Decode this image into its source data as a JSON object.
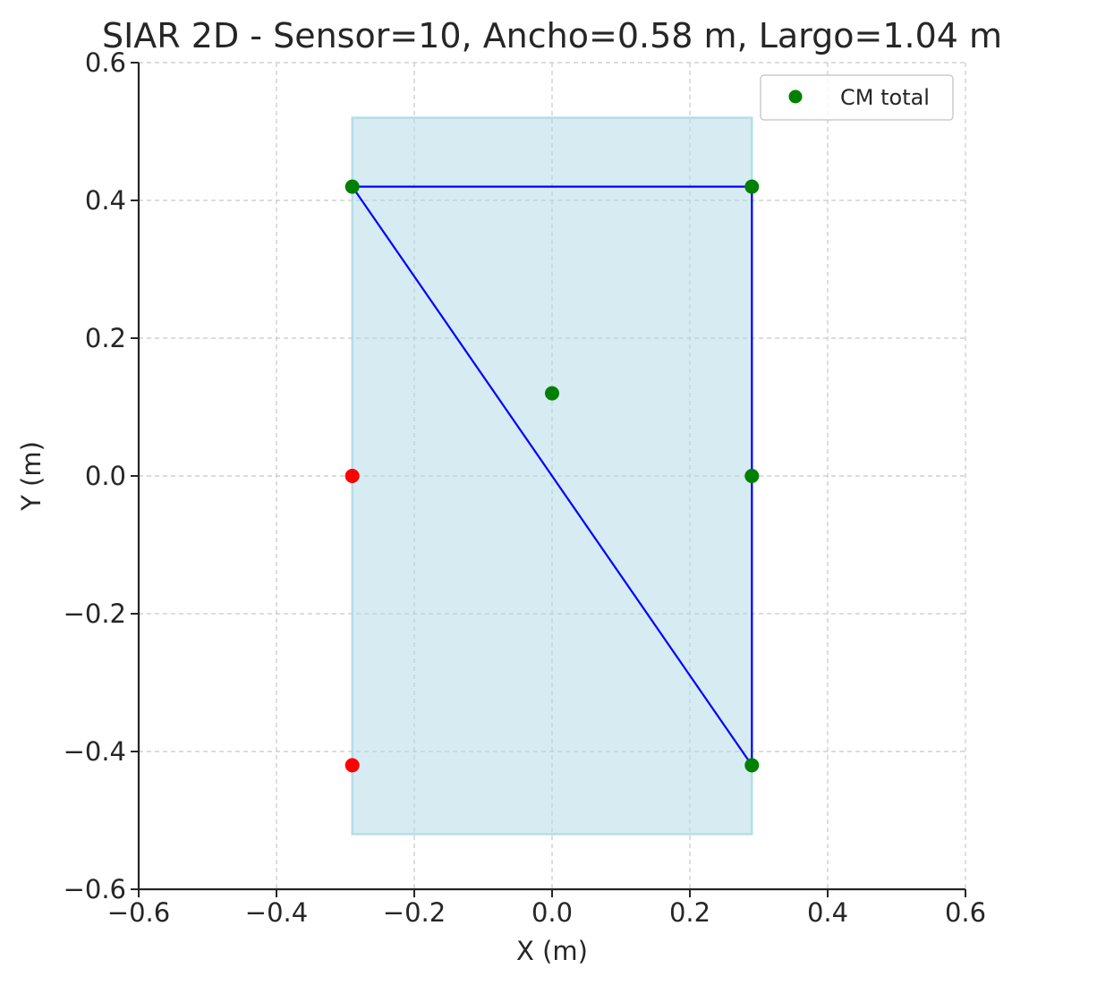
{
  "chart_data": {
    "type": "scatter",
    "title": "SIAR 2D - Sensor=10, Ancho=0.58 m, Largo=1.04 m",
    "xlabel": "X (m)",
    "ylabel": "Y (m)",
    "xlim": [
      -0.6,
      0.6
    ],
    "ylim": [
      -0.6,
      0.6
    ],
    "xticks": [
      "−0.6",
      "−0.4",
      "−0.2",
      "0.0",
      "0.2",
      "0.4",
      "0.6"
    ],
    "yticks": [
      "−0.6",
      "−0.4",
      "−0.2",
      "0.0",
      "0.2",
      "0.4",
      "0.6"
    ],
    "xtick_values": [
      -0.6,
      -0.4,
      -0.2,
      0.0,
      0.2,
      0.4,
      0.6
    ],
    "ytick_values": [
      -0.6,
      -0.4,
      -0.2,
      0.0,
      0.2,
      0.4,
      0.6
    ],
    "grid": true,
    "legend_position": "top-right",
    "body_rectangle": {
      "x": [
        -0.29,
        0.29
      ],
      "y": [
        -0.52,
        0.52
      ],
      "fill_color": "#add8e6",
      "opacity": 0.5
    },
    "outline": {
      "color": "#0000ff",
      "x": [
        -0.29,
        0.29,
        0.29,
        0.29,
        -0.29
      ],
      "y": [
        0.42,
        0.42,
        0.0,
        -0.42,
        0.42
      ]
    },
    "series": [
      {
        "name": "CM total",
        "color": "#008000",
        "x": [
          0.0
        ],
        "y": [
          0.12
        ]
      },
      {
        "color": "#008000",
        "x": [
          -0.29,
          0.29,
          0.29,
          0.29
        ],
        "y": [
          0.42,
          0.42,
          0.0,
          -0.42
        ]
      },
      {
        "color": "#ff0000",
        "x": [
          -0.29,
          -0.29
        ],
        "y": [
          0.0,
          -0.42
        ]
      }
    ]
  }
}
